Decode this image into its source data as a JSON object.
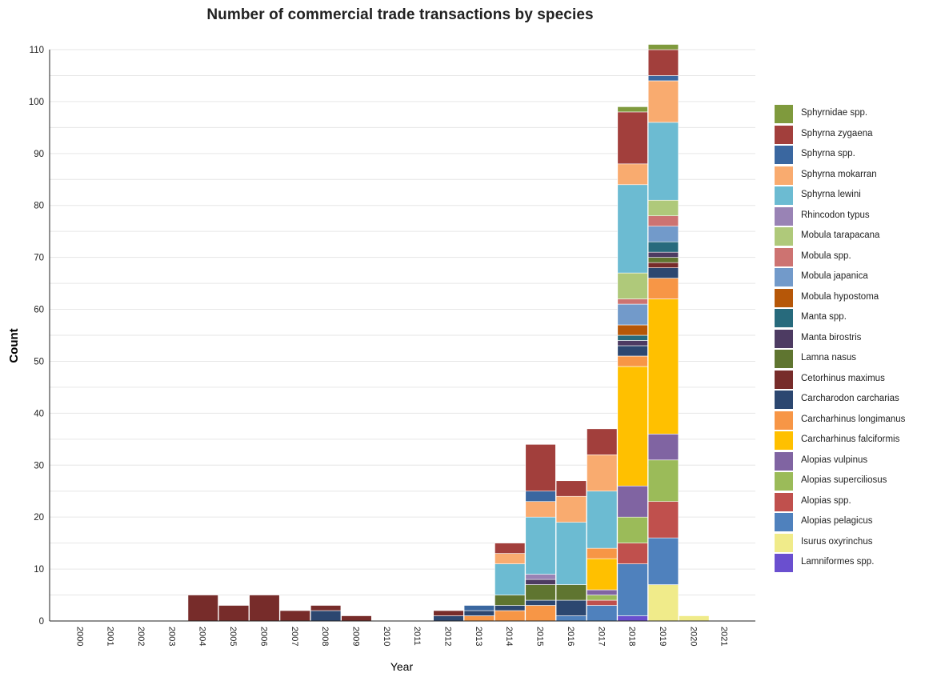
{
  "chart_data": {
    "type": "bar",
    "stacked": true,
    "title": "Number of commercial trade transactions by species",
    "xlabel": "Year",
    "ylabel": "Count",
    "ylim": [
      0,
      110
    ],
    "yticks": [
      0,
      10,
      20,
      30,
      40,
      50,
      60,
      70,
      80,
      90,
      100,
      110
    ],
    "grid": "horizontal",
    "legend_position": "right",
    "categories": [
      "2000",
      "2001",
      "2002",
      "2003",
      "2004",
      "2005",
      "2006",
      "2007",
      "2008",
      "2009",
      "2010",
      "2011",
      "2012",
      "2013",
      "2014",
      "2015",
      "2016",
      "2017",
      "2018",
      "2019",
      "2020",
      "2021"
    ],
    "series": [
      {
        "name": "Lamniformes spp.",
        "color": "#6a4fcf",
        "values": [
          0,
          0,
          0,
          0,
          0,
          0,
          0,
          0,
          0,
          0,
          0,
          0,
          0,
          0,
          0,
          0,
          0,
          0,
          1,
          0,
          0,
          0
        ]
      },
      {
        "name": "Isurus oxyrinchus",
        "color": "#f0eb8a",
        "values": [
          0,
          0,
          0,
          0,
          0,
          0,
          0,
          0,
          0,
          0,
          0,
          0,
          0,
          0,
          0,
          0,
          0,
          0,
          0,
          7,
          1,
          0
        ]
      },
      {
        "name": "Alopias pelagicus",
        "color": "#4f81bd",
        "values": [
          0,
          0,
          0,
          0,
          0,
          0,
          0,
          0,
          0,
          0,
          0,
          0,
          0,
          0,
          0,
          0,
          1,
          3,
          10,
          9,
          0,
          0
        ]
      },
      {
        "name": "Alopias spp.",
        "color": "#c0504d",
        "values": [
          0,
          0,
          0,
          0,
          0,
          0,
          0,
          0,
          0,
          0,
          0,
          0,
          0,
          0,
          0,
          0,
          0,
          1,
          4,
          7,
          0,
          0
        ]
      },
      {
        "name": "Alopias superciliosus",
        "color": "#9bbb59",
        "values": [
          0,
          0,
          0,
          0,
          0,
          0,
          0,
          0,
          0,
          0,
          0,
          0,
          0,
          0,
          0,
          0,
          0,
          1,
          5,
          8,
          0,
          0
        ]
      },
      {
        "name": "Alopias vulpinus",
        "color": "#8064a2",
        "values": [
          0,
          0,
          0,
          0,
          0,
          0,
          0,
          0,
          0,
          0,
          0,
          0,
          0,
          0,
          0,
          0,
          0,
          1,
          6,
          5,
          0,
          0
        ]
      },
      {
        "name": "Carcharhinus falciformis",
        "color": "#ffc000",
        "values": [
          0,
          0,
          0,
          0,
          0,
          0,
          0,
          0,
          0,
          0,
          0,
          0,
          0,
          0,
          0,
          0,
          0,
          6,
          23,
          26,
          0,
          0
        ]
      },
      {
        "name": "Carcharhinus longimanus",
        "color": "#f79646",
        "values": [
          0,
          0,
          0,
          0,
          0,
          0,
          0,
          0,
          0,
          0,
          0,
          0,
          0,
          1,
          2,
          3,
          0,
          2,
          2,
          4,
          0,
          0
        ]
      },
      {
        "name": "Carcharodon carcharias",
        "color": "#2c4770",
        "values": [
          0,
          0,
          0,
          0,
          0,
          0,
          0,
          0,
          2,
          0,
          0,
          0,
          1,
          1,
          1,
          1,
          3,
          0,
          2,
          2,
          0,
          0
        ]
      },
      {
        "name": "Cetorhinus maximus",
        "color": "#772c2a",
        "values": [
          0,
          0,
          0,
          0,
          5,
          3,
          5,
          2,
          1,
          1,
          0,
          0,
          1,
          0,
          0,
          0,
          0,
          0,
          0,
          1,
          0,
          0
        ]
      },
      {
        "name": "Lamna nasus",
        "color": "#5f7530",
        "values": [
          0,
          0,
          0,
          0,
          0,
          0,
          0,
          0,
          0,
          0,
          0,
          0,
          0,
          0,
          2,
          3,
          3,
          0,
          0,
          1,
          0,
          0
        ]
      },
      {
        "name": "Manta birostris",
        "color": "#4d3b62",
        "values": [
          0,
          0,
          0,
          0,
          0,
          0,
          0,
          0,
          0,
          0,
          0,
          0,
          0,
          0,
          0,
          1,
          0,
          0,
          1,
          1,
          0,
          0
        ]
      },
      {
        "name": "Manta spp.",
        "color": "#276a7c",
        "values": [
          0,
          0,
          0,
          0,
          0,
          0,
          0,
          0,
          0,
          0,
          0,
          0,
          0,
          0,
          0,
          0,
          0,
          0,
          1,
          2,
          0,
          0
        ]
      },
      {
        "name": "Mobula hypostoma",
        "color": "#b65708",
        "values": [
          0,
          0,
          0,
          0,
          0,
          0,
          0,
          0,
          0,
          0,
          0,
          0,
          0,
          0,
          0,
          0,
          0,
          0,
          2,
          0,
          0,
          0
        ]
      },
      {
        "name": "Mobula japanica",
        "color": "#729aca",
        "values": [
          0,
          0,
          0,
          0,
          0,
          0,
          0,
          0,
          0,
          0,
          0,
          0,
          0,
          0,
          0,
          0,
          0,
          0,
          4,
          3,
          0,
          0
        ]
      },
      {
        "name": "Mobula spp.",
        "color": "#cd7371",
        "values": [
          0,
          0,
          0,
          0,
          0,
          0,
          0,
          0,
          0,
          0,
          0,
          0,
          0,
          0,
          0,
          0,
          0,
          0,
          1,
          2,
          0,
          0
        ]
      },
      {
        "name": "Mobula tarapacana",
        "color": "#afc97a",
        "values": [
          0,
          0,
          0,
          0,
          0,
          0,
          0,
          0,
          0,
          0,
          0,
          0,
          0,
          0,
          0,
          0,
          0,
          0,
          5,
          3,
          0,
          0
        ]
      },
      {
        "name": "Rhincodon typus",
        "color": "#9983b5",
        "values": [
          0,
          0,
          0,
          0,
          0,
          0,
          0,
          0,
          0,
          0,
          0,
          0,
          0,
          0,
          0,
          1,
          0,
          0,
          0,
          0,
          0,
          0
        ]
      },
      {
        "name": "Sphyrna lewini",
        "color": "#6cbbd2",
        "values": [
          0,
          0,
          0,
          0,
          0,
          0,
          0,
          0,
          0,
          0,
          0,
          0,
          0,
          0,
          6,
          11,
          12,
          11,
          17,
          15,
          0,
          0
        ]
      },
      {
        "name": "Sphyrna mokarran",
        "color": "#f9ab6f",
        "values": [
          0,
          0,
          0,
          0,
          0,
          0,
          0,
          0,
          0,
          0,
          0,
          0,
          0,
          0,
          2,
          3,
          5,
          7,
          4,
          8,
          0,
          0
        ]
      },
      {
        "name": "Sphyrna spp.",
        "color": "#3a67a0",
        "values": [
          0,
          0,
          0,
          0,
          0,
          0,
          0,
          0,
          0,
          0,
          0,
          0,
          0,
          1,
          0,
          2,
          0,
          0,
          0,
          1,
          0,
          0
        ]
      },
      {
        "name": "Sphyrna zygaena",
        "color": "#a23f3c",
        "values": [
          0,
          0,
          0,
          0,
          0,
          0,
          0,
          0,
          0,
          0,
          0,
          0,
          0,
          0,
          2,
          9,
          3,
          5,
          10,
          5,
          0,
          0
        ]
      },
      {
        "name": "Sphyrnidae spp.",
        "color": "#7f9a3d",
        "values": [
          0,
          0,
          0,
          0,
          0,
          0,
          0,
          0,
          0,
          0,
          0,
          0,
          0,
          0,
          0,
          0,
          0,
          0,
          1,
          1,
          0,
          0
        ]
      }
    ]
  }
}
